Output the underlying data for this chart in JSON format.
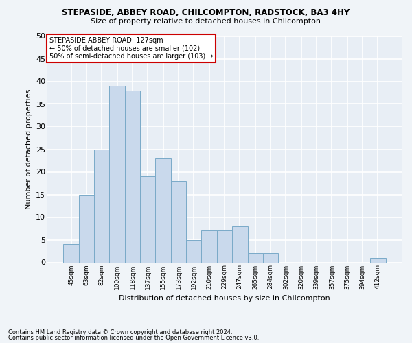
{
  "title_line1": "STEPASIDE, ABBEY ROAD, CHILCOMPTON, RADSTOCK, BA3 4HY",
  "title_line2": "Size of property relative to detached houses in Chilcompton",
  "xlabel": "Distribution of detached houses by size in Chilcompton",
  "ylabel": "Number of detached properties",
  "bar_color": "#c9d9ec",
  "bar_edge_color": "#7aaac8",
  "background_color": "#e8eef5",
  "grid_color": "#ffffff",
  "fig_background": "#f0f4f8",
  "categories": [
    "45sqm",
    "63sqm",
    "82sqm",
    "100sqm",
    "118sqm",
    "137sqm",
    "155sqm",
    "173sqm",
    "192sqm",
    "210sqm",
    "229sqm",
    "247sqm",
    "265sqm",
    "284sqm",
    "302sqm",
    "320sqm",
    "339sqm",
    "357sqm",
    "375sqm",
    "394sqm",
    "412sqm"
  ],
  "values": [
    4,
    15,
    25,
    39,
    38,
    19,
    23,
    18,
    5,
    7,
    7,
    8,
    2,
    2,
    0,
    0,
    0,
    0,
    0,
    0,
    1
  ],
  "ylim": [
    0,
    50
  ],
  "yticks": [
    0,
    5,
    10,
    15,
    20,
    25,
    30,
    35,
    40,
    45,
    50
  ],
  "annotation_text": "STEPASIDE ABBEY ROAD: 127sqm\n← 50% of detached houses are smaller (102)\n50% of semi-detached houses are larger (103) →",
  "annotation_box_color": "#ffffff",
  "annotation_border_color": "#cc0000",
  "footnote1": "Contains HM Land Registry data © Crown copyright and database right 2024.",
  "footnote2": "Contains public sector information licensed under the Open Government Licence v3.0.",
  "vline_color": "#555555"
}
